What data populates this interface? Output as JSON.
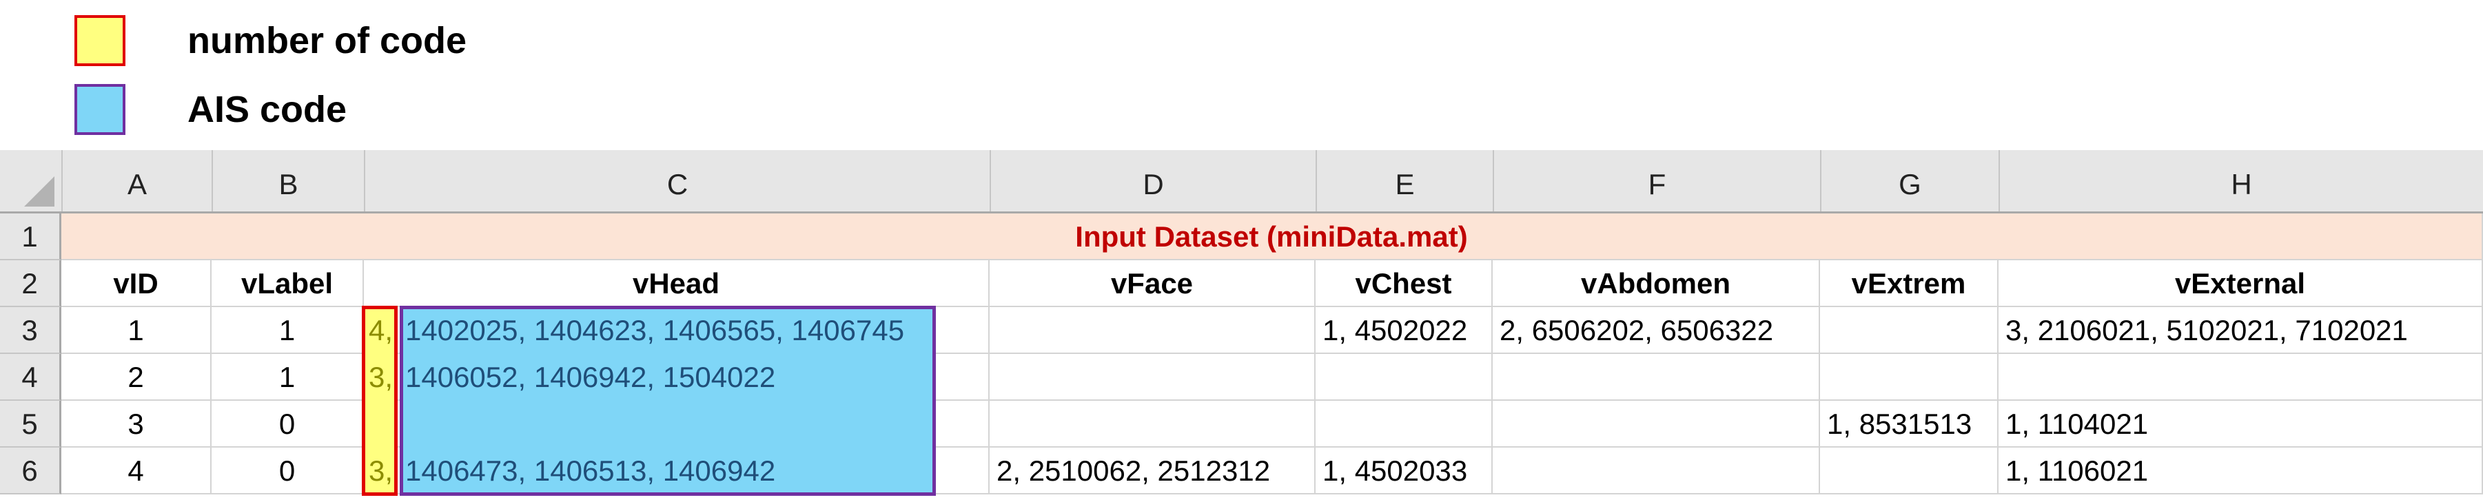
{
  "legend": [
    {
      "label": "number of code",
      "fill": "#ffff80",
      "border": "#e00000"
    },
    {
      "label": "AIS code",
      "fill": "#7fd6f7",
      "border": "#7030a0"
    }
  ],
  "columns": [
    "A",
    "B",
    "C",
    "D",
    "E",
    "F",
    "G",
    "H"
  ],
  "row_numbers": [
    "1",
    "2",
    "3",
    "4",
    "5",
    "6"
  ],
  "title": "Input Dataset (miniData.mat)",
  "headers": [
    "vID",
    "vLabel",
    "vHead",
    "vFace",
    "vChest",
    "vAbdomen",
    "vExtrem",
    "vExternal"
  ],
  "rows": [
    {
      "vID": "1",
      "vLabel": "1",
      "vHead_count": "4,",
      "vHead_codes": "1402025, 1404623, 1406565, 1406745",
      "vFace": "",
      "vChest": "1, 4502022",
      "vAbdomen": "2, 6506202, 6506322",
      "vExtrem": "",
      "vExternal": "3, 2106021, 5102021, 7102021"
    },
    {
      "vID": "2",
      "vLabel": "1",
      "vHead_count": "3,",
      "vHead_codes": "1406052, 1406942, 1504022",
      "vFace": "",
      "vChest": "",
      "vAbdomen": "",
      "vExtrem": "",
      "vExternal": ""
    },
    {
      "vID": "3",
      "vLabel": "0",
      "vHead_count": "",
      "vHead_codes": "",
      "vFace": "",
      "vChest": "",
      "vAbdomen": "",
      "vExtrem": "1, 8531513",
      "vExternal": "1, 1104021"
    },
    {
      "vID": "4",
      "vLabel": "0",
      "vHead_count": "3,",
      "vHead_codes": "1406473, 1406513, 1406942",
      "vFace": "2, 2510062, 2512312",
      "vChest": "1, 4502033",
      "vAbdomen": "",
      "vExtrem": "",
      "vExternal": "1, 1106021"
    }
  ]
}
